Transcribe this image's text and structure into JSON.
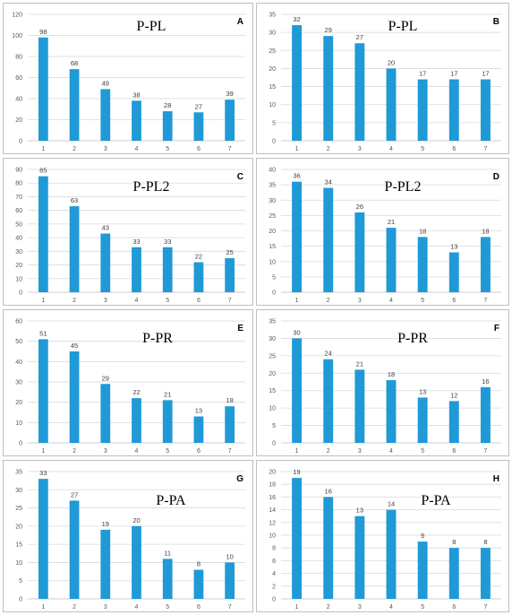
{
  "style": {
    "bar_color": "#1f9ad6",
    "grid_color": "#d9d9d9",
    "border_color": "#bfbfbf"
  },
  "chart_data": [
    {
      "type": "bar",
      "letter": "A",
      "title": "P-PL",
      "categories": [
        "1",
        "2",
        "3",
        "4",
        "5",
        "6",
        "7"
      ],
      "values": [
        98,
        68,
        49,
        38,
        28,
        27,
        39
      ],
      "ylim": [
        0,
        120
      ],
      "yticks": [
        0,
        20,
        40,
        60,
        80,
        100,
        120
      ],
      "grid": true
    },
    {
      "type": "bar",
      "letter": "B",
      "title": "P-PL",
      "categories": [
        "1",
        "2",
        "3",
        "4",
        "5",
        "6",
        "7"
      ],
      "values": [
        32,
        29,
        27,
        20,
        17,
        17,
        17
      ],
      "ylim": [
        0,
        35
      ],
      "yticks": [
        0,
        5,
        10,
        15,
        20,
        25,
        30,
        35
      ],
      "grid": true
    },
    {
      "type": "bar",
      "letter": "C",
      "title": "P-PL2",
      "categories": [
        "1",
        "2",
        "3",
        "4",
        "5",
        "6",
        "7"
      ],
      "values": [
        85,
        63,
        43,
        33,
        33,
        22,
        25
      ],
      "ylim": [
        0,
        90
      ],
      "yticks": [
        0,
        10,
        20,
        30,
        40,
        50,
        60,
        70,
        80,
        90
      ],
      "grid": true
    },
    {
      "type": "bar",
      "letter": "D",
      "title": "P-PL2",
      "categories": [
        "1",
        "2",
        "3",
        "4",
        "5",
        "6",
        "7"
      ],
      "values": [
        36,
        34,
        26,
        21,
        18,
        13,
        18
      ],
      "ylim": [
        0,
        40
      ],
      "yticks": [
        0,
        5,
        10,
        15,
        20,
        25,
        30,
        35,
        40
      ],
      "grid": true
    },
    {
      "type": "bar",
      "letter": "E",
      "title": "P-PR",
      "categories": [
        "1",
        "2",
        "3",
        "4",
        "5",
        "6",
        "7"
      ],
      "values": [
        51,
        45,
        29,
        22,
        21,
        13,
        18
      ],
      "ylim": [
        0,
        60
      ],
      "yticks": [
        0,
        10,
        20,
        30,
        40,
        50,
        60
      ],
      "grid": true
    },
    {
      "type": "bar",
      "letter": "F",
      "title": "P-PR",
      "categories": [
        "1",
        "2",
        "3",
        "4",
        "5",
        "6",
        "7"
      ],
      "values": [
        30,
        24,
        21,
        18,
        13,
        12,
        16
      ],
      "ylim": [
        0,
        35
      ],
      "yticks": [
        0,
        5,
        10,
        15,
        20,
        25,
        30,
        35
      ],
      "grid": true
    },
    {
      "type": "bar",
      "letter": "G",
      "title": "P-PA",
      "categories": [
        "1",
        "2",
        "3",
        "4",
        "5",
        "6",
        "7"
      ],
      "values": [
        33,
        27,
        19,
        20,
        11,
        8,
        10
      ],
      "ylim": [
        0,
        35
      ],
      "yticks": [
        0,
        5,
        10,
        15,
        20,
        25,
        30,
        35
      ],
      "grid": true
    },
    {
      "type": "bar",
      "letter": "H",
      "title": "P-PA",
      "categories": [
        "1",
        "2",
        "3",
        "4",
        "5",
        "6",
        "7"
      ],
      "values": [
        19,
        16,
        13,
        14,
        9,
        8,
        8
      ],
      "ylim": [
        0,
        20
      ],
      "yticks": [
        0,
        2,
        4,
        6,
        8,
        10,
        12,
        14,
        16,
        18,
        20
      ],
      "grid": true
    }
  ]
}
